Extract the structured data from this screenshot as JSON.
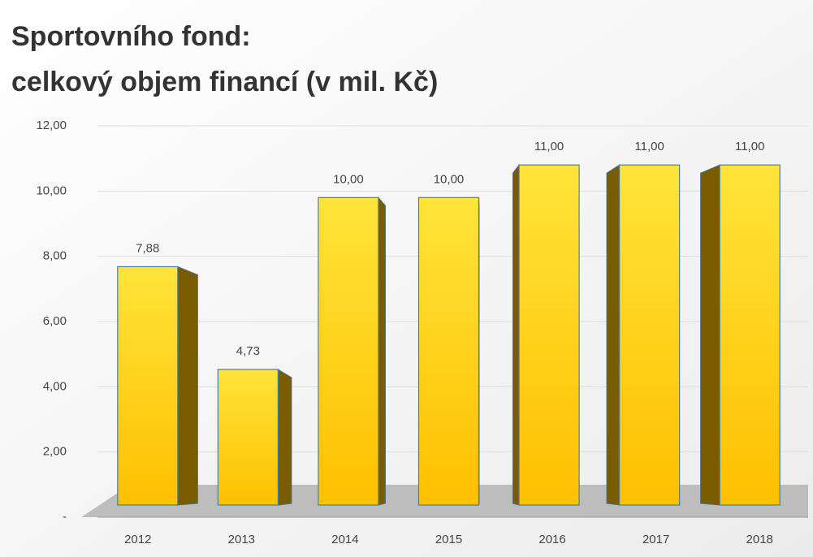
{
  "chart_data": {
    "type": "bar3d",
    "title": [
      "Sportovního fond:",
      "celkový objem financí (v mil. Kč)"
    ],
    "categories": [
      "2012",
      "2013",
      "2014",
      "2015",
      "2016",
      "2017",
      "2018"
    ],
    "values": [
      7.88,
      4.73,
      10,
      10,
      11,
      11,
      11
    ],
    "value_labels": [
      "7,88",
      "4,73",
      "10,00",
      "10,00",
      "11,00",
      "11,00",
      "11,00"
    ],
    "color": "#ffc000",
    "ylim": [
      0,
      12
    ],
    "yticks": [
      {
        "value": 0,
        "label": "-"
      },
      {
        "value": 2,
        "label": "2,00"
      },
      {
        "value": 4,
        "label": "4,00"
      },
      {
        "value": 6,
        "label": "6,00"
      },
      {
        "value": 8,
        "label": "8,00"
      },
      {
        "value": 10,
        "label": "10,00"
      },
      {
        "value": 12,
        "label": "12,00"
      }
    ],
    "grid": true
  }
}
